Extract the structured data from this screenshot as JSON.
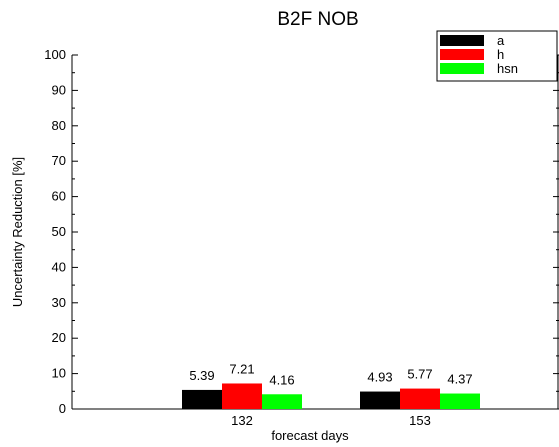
{
  "chart_data": {
    "type": "bar",
    "title": "B2F NOB",
    "xlabel": "forecast days",
    "ylabel": "Uncertainty Reduction [%]",
    "ylim": [
      0,
      100
    ],
    "yticks": [
      0,
      10,
      20,
      30,
      40,
      50,
      60,
      70,
      80,
      90,
      100
    ],
    "categories": [
      "132",
      "153"
    ],
    "series": [
      {
        "name": "a",
        "color": "#000000",
        "values": [
          5.39,
          4.93
        ]
      },
      {
        "name": "h",
        "color": "#ff0000",
        "values": [
          7.21,
          5.77
        ]
      },
      {
        "name": "hsn",
        "color": "#00ff00",
        "values": [
          4.16,
          4.37
        ]
      }
    ],
    "legend_position": "top-right",
    "grid": false
  }
}
